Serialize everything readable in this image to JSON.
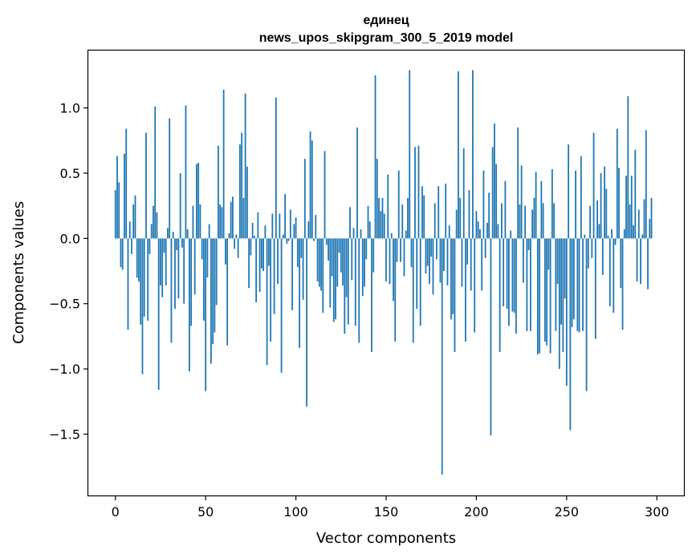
{
  "chart_data": {
    "type": "bar",
    "title_line1": "единец",
    "title_line2": "news_upos_skipgram_300_5_2019 model",
    "xlabel": "Vector components",
    "ylabel": "Components values",
    "xlim": [
      -15,
      315
    ],
    "ylim": [
      -1.97,
      1.44
    ],
    "xticks": [
      0,
      50,
      100,
      150,
      200,
      250,
      300
    ],
    "yticks": [
      -1.5,
      -1.0,
      -0.5,
      0.0,
      0.5,
      1.0
    ],
    "ytick_labels": [
      "−1.5",
      "−1.0",
      "−0.5",
      "0.0",
      "0.5",
      "1.0"
    ],
    "bar_color": "#1f77b4",
    "values": [
      0.37,
      0.63,
      0.43,
      -0.22,
      -0.24,
      0.65,
      0.84,
      -0.7,
      0.13,
      -0.12,
      0.26,
      0.33,
      -0.3,
      -0.33,
      -0.66,
      -1.04,
      -0.6,
      0.81,
      -0.63,
      -0.12,
      0.11,
      0.25,
      1.01,
      0.2,
      -1.16,
      -0.36,
      -0.45,
      -0.11,
      -0.36,
      0.08,
      0.92,
      -0.8,
      0.05,
      -0.54,
      -0.09,
      -0.46,
      0.5,
      -0.07,
      -0.5,
      1.02,
      0.07,
      -1.02,
      -0.67,
      0.25,
      -0.43,
      0.57,
      0.58,
      0.26,
      -0.16,
      -0.63,
      -1.17,
      -0.3,
      0.11,
      -0.96,
      -0.81,
      -0.72,
      -0.51,
      0.71,
      0.26,
      0.24,
      1.14,
      -0.2,
      -0.82,
      0.04,
      0.28,
      0.32,
      -0.08,
      0.03,
      -0.15,
      0.72,
      0.81,
      0.31,
      1.11,
      0.55,
      -0.38,
      -0.13,
      0.12,
      0.02,
      -0.49,
      0.2,
      -0.41,
      -0.23,
      -0.25,
      0.1,
      -0.97,
      -0.21,
      -0.79,
      0.19,
      -0.58,
      1.08,
      -0.35,
      0.19,
      -1.03,
      0.03,
      0.34,
      -0.04,
      -0.02,
      0.22,
      -0.55,
      0.11,
      0.16,
      -0.22,
      -0.84,
      -0.15,
      -0.47,
      0.61,
      -1.29,
      0.13,
      0.82,
      0.75,
      -0.02,
      0.18,
      -0.33,
      -0.37,
      -0.4,
      -0.57,
      0.67,
      -0.05,
      -0.17,
      -0.53,
      -0.29,
      -0.64,
      -0.62,
      -0.37,
      -0.11,
      -0.26,
      -0.36,
      -0.73,
      -0.45,
      -0.66,
      0.24,
      -0.32,
      0.08,
      -0.67,
      0.85,
      -0.8,
      0.07,
      -0.44,
      -0.37,
      -0.16,
      0.25,
      0.13,
      -0.87,
      -0.26,
      1.25,
      0.61,
      0.31,
      0.21,
      0.31,
      0.19,
      -0.33,
      0.49,
      -0.35,
      0.04,
      -0.48,
      -0.79,
      -0.18,
      0.52,
      -0.18,
      0.26,
      -0.29,
      0.06,
      0.31,
      1.29,
      -0.22,
      -0.8,
      0.7,
      -0.54,
      0.71,
      -0.67,
      0.4,
      0.33,
      -0.27,
      -0.21,
      -0.35,
      -0.14,
      -0.43,
      0.27,
      -0.16,
      0.4,
      -0.34,
      -1.81,
      -0.25,
      0.42,
      -0.36,
      0.1,
      -0.62,
      -0.58,
      -0.87,
      0.22,
      1.28,
      0.31,
      -0.37,
      0.69,
      -0.79,
      -0.2,
      0.37,
      -0.4,
      1.29,
      -0.72,
      0.21,
      0.13,
      0.07,
      -0.4,
      0.52,
      -0.15,
      0.12,
      0.35,
      -1.51,
      0.7,
      0.88,
      0.57,
      0.11,
      -0.87,
      0.27,
      -0.52,
      0.44,
      -0.54,
      -0.67,
      0.06,
      -0.56,
      -0.57,
      -0.73,
      0.85,
      0.26,
      0.56,
      -0.34,
      0.25,
      -0.71,
      -0.09,
      -0.71,
      0.22,
      0.31,
      0.51,
      -0.89,
      -0.88,
      0.44,
      0.27,
      -0.79,
      -0.82,
      -0.24,
      -0.88,
      0.53,
      0.27,
      -0.71,
      -0.35,
      -1.0,
      -0.66,
      -0.87,
      -0.46,
      -1.13,
      0.72,
      -1.47,
      -0.68,
      -0.62,
      0.52,
      -0.71,
      -0.72,
      0.63,
      -0.71,
      0.03,
      -1.17,
      -0.23,
      0.25,
      -0.15,
      0.81,
      -0.77,
      0.29,
      0.11,
      0.5,
      -0.28,
      0.55,
      0.38,
      0.02,
      -0.52,
      0.07,
      -0.57,
      -0.05,
      0.84,
      0.54,
      -0.38,
      -0.7,
      0.07,
      0.48,
      1.09,
      0.26,
      0.48,
      0.1,
      0.68,
      -0.33,
      0.22,
      -0.35,
      0.03,
      0.3,
      0.83,
      -0.39,
      0.15,
      0.31
    ]
  }
}
